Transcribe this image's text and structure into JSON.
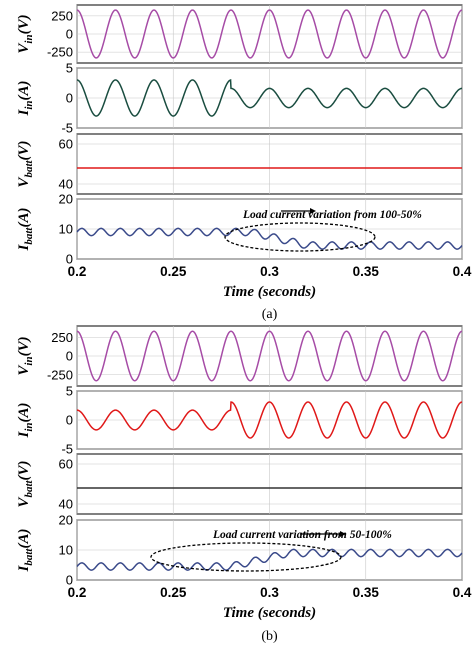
{
  "chart_data": [
    {
      "figure": "(a)",
      "xlabel": "Time (seconds)",
      "x_ticks": [
        "0.2",
        "0.25",
        "0.3",
        "0.35",
        "0.4"
      ],
      "xlim": [
        0.2,
        0.4
      ],
      "panels": [
        {
          "type": "line",
          "ylabel": "Vin (V)",
          "y_main": "V",
          "y_sub": "in",
          "y_unit": "(V)",
          "ylim": [
            -400,
            400
          ],
          "y_ticks": [
            "250",
            "0",
            "-250"
          ],
          "y_tick_values": [
            250,
            0,
            -250
          ],
          "color": "#a64ca6",
          "signal": {
            "kind": "sine",
            "freq_hz": 50,
            "amplitude": 330,
            "amplitude_after": 330,
            "change_at": 0.3
          }
        },
        {
          "type": "line",
          "ylabel": "Iin (A)",
          "y_main": "I",
          "y_sub": "in",
          "y_unit": "(A)",
          "ylim": [
            -5,
            5
          ],
          "y_ticks": [
            "5",
            "0",
            "-5"
          ],
          "y_tick_values": [
            5,
            0,
            -5
          ],
          "color": "#1a4d40",
          "signal": {
            "kind": "sine",
            "freq_hz": 50,
            "amplitude": 3.0,
            "amplitude_after": 1.6,
            "change_at": 0.28
          }
        },
        {
          "type": "line",
          "ylabel": "Vbatt (V)",
          "y_main": "V",
          "y_sub": "batt",
          "y_unit": "(V)",
          "ylim": [
            35,
            65
          ],
          "y_ticks": [
            "60",
            "40"
          ],
          "y_tick_values": [
            60,
            40
          ],
          "color": "#e01818",
          "signal": {
            "kind": "const",
            "level": 48
          }
        },
        {
          "type": "line",
          "ylabel": "Ibatt (A)",
          "y_main": "I",
          "y_sub": "batt",
          "y_unit": "(A)",
          "ylim": [
            0,
            20
          ],
          "y_ticks": [
            "20",
            "10",
            "0"
          ],
          "y_tick_values": [
            20,
            10,
            0
          ],
          "color": "#3a4a8a",
          "signal": {
            "kind": "ripple",
            "freq_hz": 100,
            "level": 9,
            "level_after": 4.5,
            "ripple": 1.2,
            "change_at": 0.3
          }
        }
      ],
      "annotation": "Load current variation from 100-50%"
    },
    {
      "figure": "(b)",
      "xlabel": "Time (seconds)",
      "x_ticks": [
        "0.2",
        "0.25",
        "0.3",
        "0.35",
        "0.4"
      ],
      "xlim": [
        0.2,
        0.4
      ],
      "panels": [
        {
          "type": "line",
          "ylabel": "Vin (V)",
          "y_main": "V",
          "y_sub": "in",
          "y_unit": "(V)",
          "ylim": [
            -400,
            400
          ],
          "y_ticks": [
            "250",
            "0",
            "-250"
          ],
          "y_tick_values": [
            250,
            0,
            -250
          ],
          "color": "#a64ca6",
          "signal": {
            "kind": "sine",
            "freq_hz": 50,
            "amplitude": 330,
            "amplitude_after": 330,
            "change_at": 0.3
          }
        },
        {
          "type": "line",
          "ylabel": "Iin (A)",
          "y_main": "I",
          "y_sub": "in",
          "y_unit": "(A)",
          "ylim": [
            -5,
            5
          ],
          "y_ticks": [
            "5",
            "0",
            "-5"
          ],
          "y_tick_values": [
            5,
            0,
            -5
          ],
          "color": "#e01818",
          "signal": {
            "kind": "sine",
            "freq_hz": 50,
            "amplitude": 1.7,
            "amplitude_after": 3.1,
            "change_at": 0.28
          }
        },
        {
          "type": "line",
          "ylabel": "Vbatt (V)",
          "y_main": "V",
          "y_sub": "batt",
          "y_unit": "(V)",
          "ylim": [
            35,
            65
          ],
          "y_ticks": [
            "60",
            "40"
          ],
          "y_tick_values": [
            60,
            40
          ],
          "color": "#333333",
          "signal": {
            "kind": "const",
            "level": 48
          }
        },
        {
          "type": "line",
          "ylabel": "Ibatt (A)",
          "y_main": "I",
          "y_sub": "batt",
          "y_unit": "(A)",
          "ylim": [
            0,
            20
          ],
          "y_ticks": [
            "20",
            "10",
            "0"
          ],
          "y_tick_values": [
            20,
            10,
            0
          ],
          "color": "#3a4a8a",
          "signal": {
            "kind": "ripple",
            "freq_hz": 100,
            "level": 4.5,
            "level_after": 9,
            "ripple": 1.2,
            "change_at": 0.29
          }
        }
      ],
      "annotation": "Load current variation from 50-100%"
    }
  ]
}
